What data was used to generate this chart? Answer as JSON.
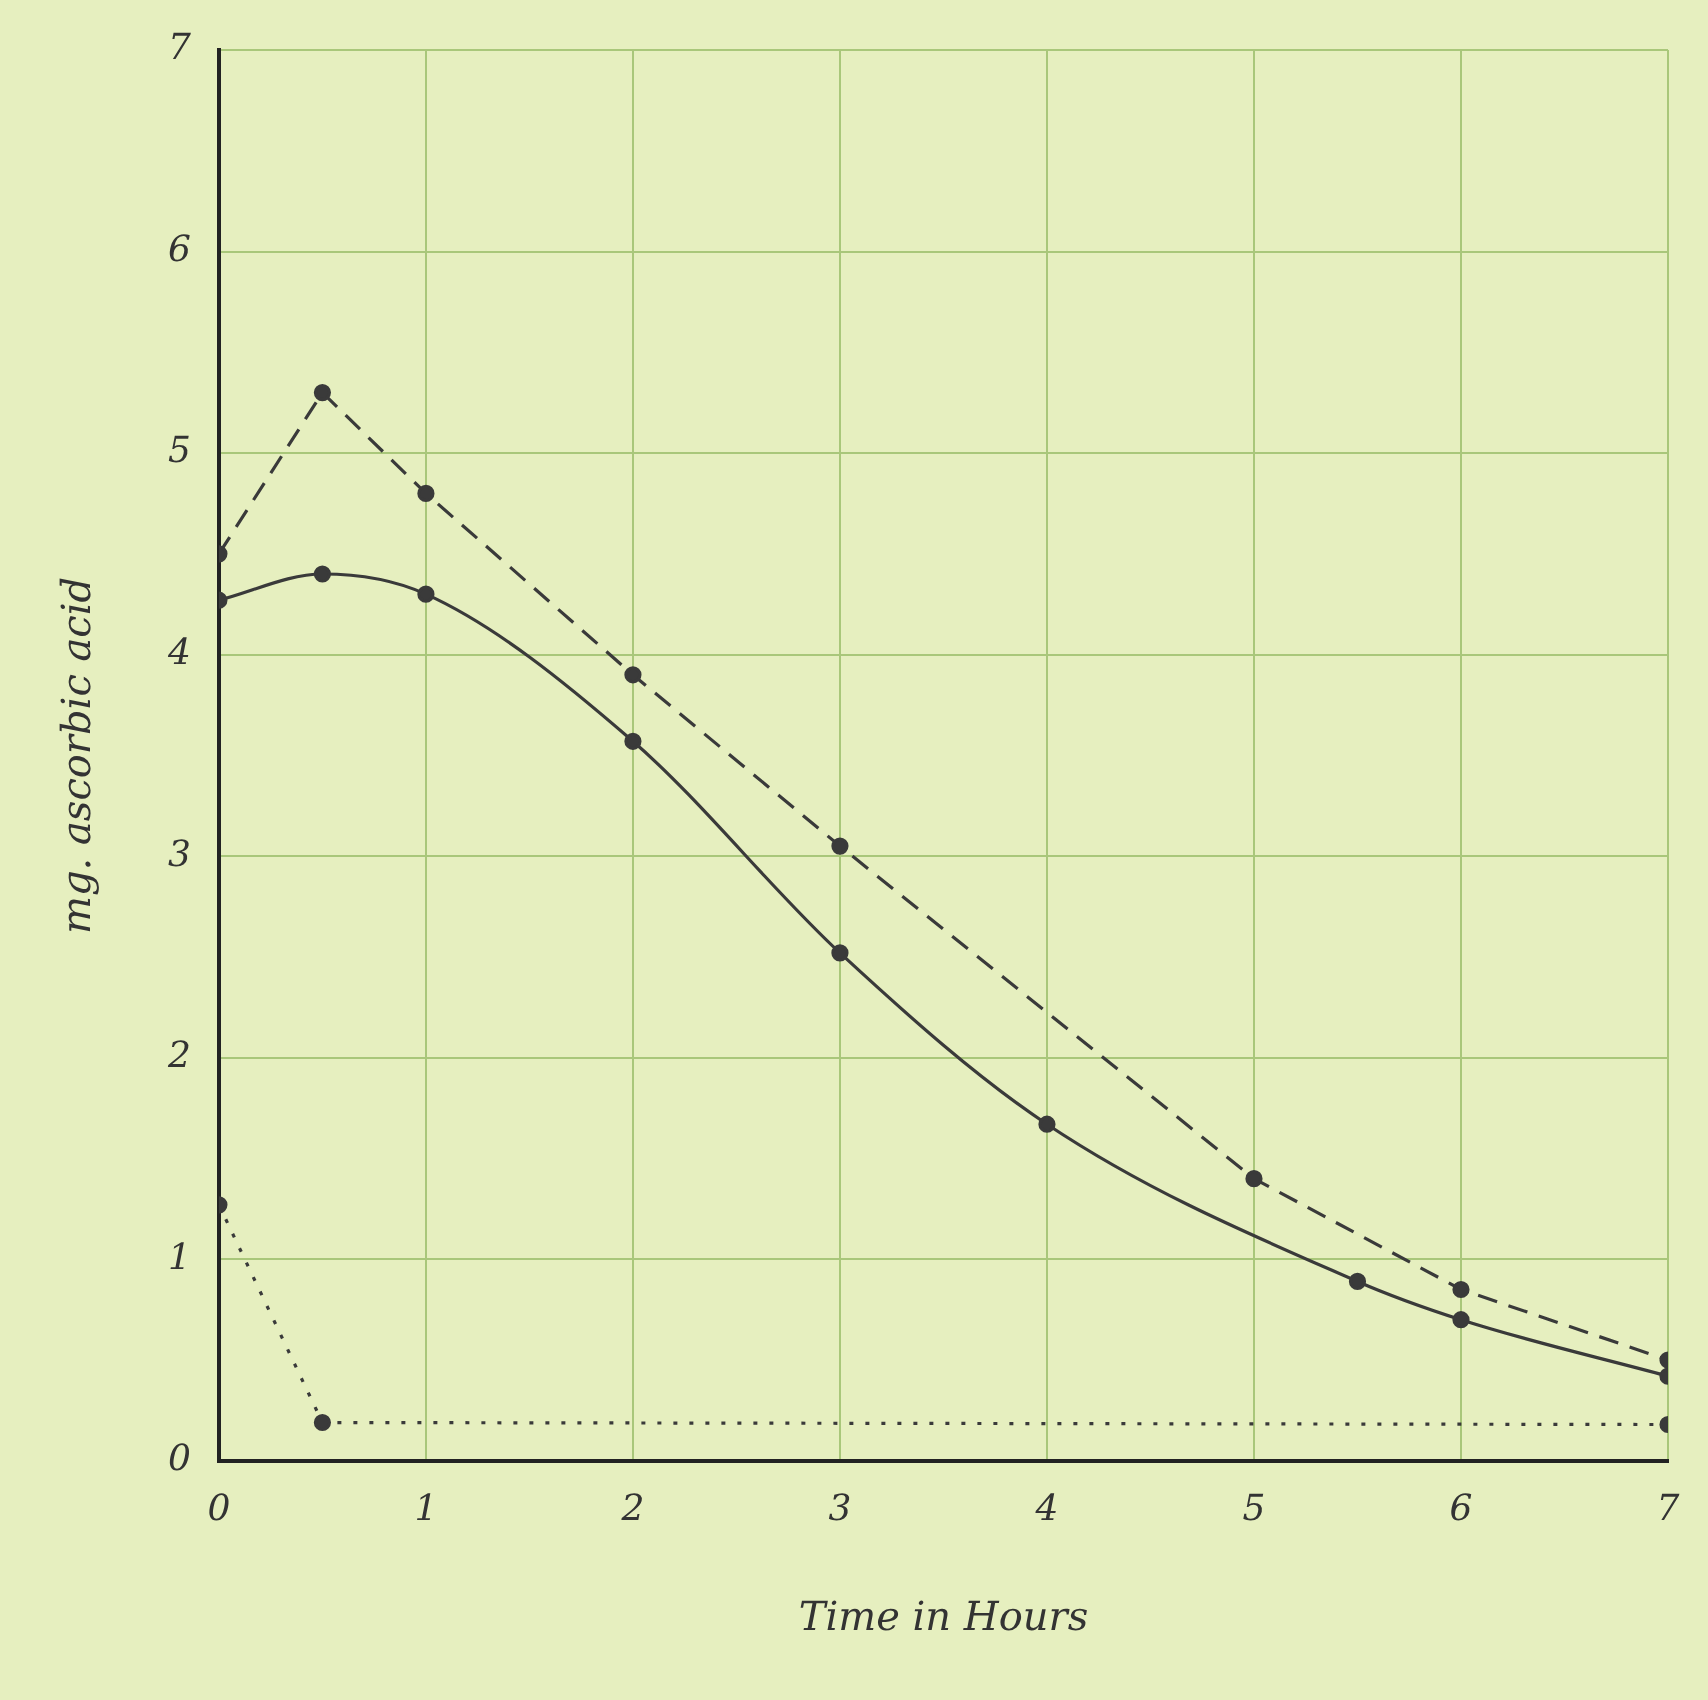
{
  "chart_data": {
    "type": "line",
    "xlabel": "Time in Hours",
    "ylabel": "mg. ascorbic acid",
    "xlim": [
      0,
      7
    ],
    "ylim": [
      0,
      7
    ],
    "xticks": [
      0,
      1,
      2,
      3,
      4,
      5,
      6,
      7
    ],
    "yticks": [
      0,
      1,
      2,
      3,
      4,
      5,
      6,
      7
    ],
    "grid": true,
    "legend": false,
    "marker": "circle",
    "series": [
      {
        "color": "#3a3a3a",
        "line_style": "dashed",
        "x": [
          0,
          0.5,
          1,
          2,
          3,
          5,
          6,
          7
        ],
        "values": [
          4.5,
          5.3,
          4.8,
          3.9,
          3.05,
          1.4,
          0.85,
          0.5
        ]
      },
      {
        "color": "#3a3a3a",
        "line_style": "solid",
        "x": [
          0,
          0.5,
          1,
          2,
          3,
          4,
          5.5,
          6,
          7
        ],
        "values": [
          4.27,
          4.4,
          4.3,
          3.57,
          2.52,
          1.67,
          0.89,
          0.7,
          0.42
        ]
      },
      {
        "color": "#3a3a3a",
        "line_style": "dotted",
        "x": [
          0,
          0.5,
          7
        ],
        "values": [
          1.27,
          0.19,
          0.18
        ]
      }
    ]
  }
}
